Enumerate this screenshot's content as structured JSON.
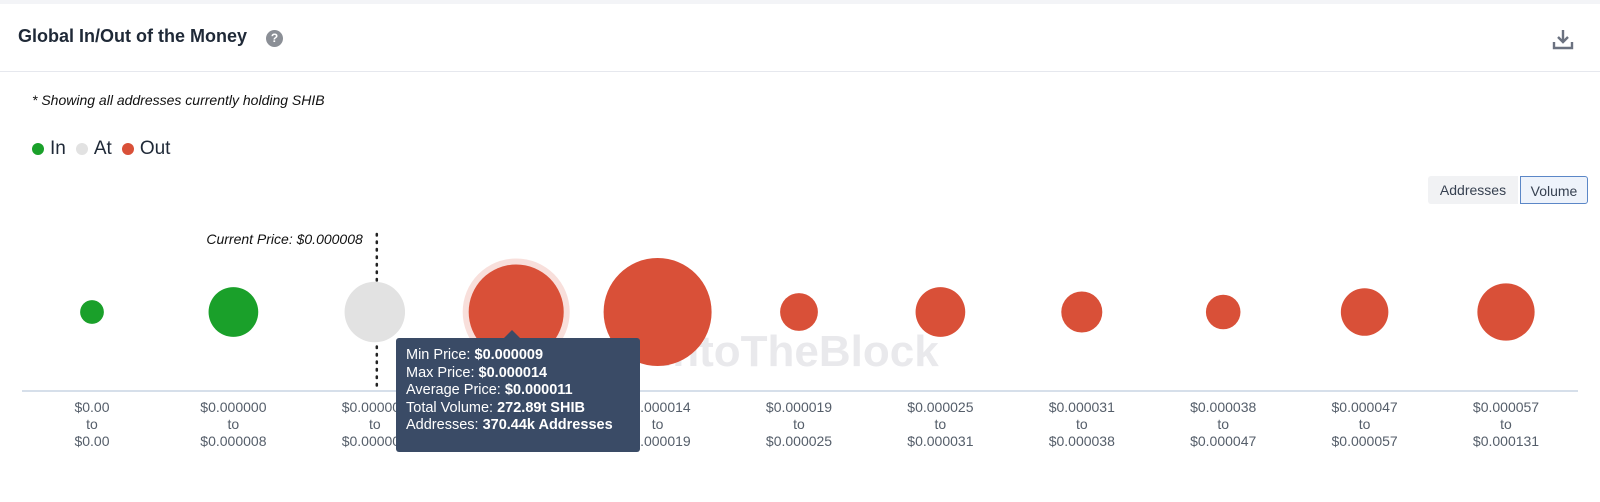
{
  "header": {
    "title": "Global In/Out of the Money",
    "help_icon": "question-icon",
    "download_icon": "download-icon"
  },
  "note": "* Showing all addresses currently holding SHIB",
  "legend": [
    {
      "label": "In",
      "color": "#1aa02a"
    },
    {
      "label": "At",
      "color": "#e2e2e2"
    },
    {
      "label": "Out",
      "color": "#d95038"
    }
  ],
  "toggles": {
    "addresses": "Addresses",
    "volume": "Volume",
    "active": "Volume"
  },
  "watermark": "IntoTheBlock",
  "chart_data": {
    "type": "scatter",
    "current_price_label": "Current Price: $0.000008",
    "current_price_position": "between bucket 3 center and bucket 3",
    "bucket_labels": [
      {
        "from": "$0.00",
        "to": "$0.00"
      },
      {
        "from": "$0.000000",
        "to": "$0.000008"
      },
      {
        "from": "$0.000008",
        "to": "$0.000009"
      },
      {
        "from": "$0.000009",
        "to": "$0.000014"
      },
      {
        "from": "$0.000014",
        "to": "$0.000019"
      },
      {
        "from": "$0.000019",
        "to": "$0.000025"
      },
      {
        "from": "$0.000025",
        "to": "$0.000031"
      },
      {
        "from": "$0.000031",
        "to": "$0.000038"
      },
      {
        "from": "$0.000038",
        "to": "$0.000047"
      },
      {
        "from": "$0.000047",
        "to": "$0.000057"
      },
      {
        "from": "$0.000057",
        "to": "$0.000131"
      }
    ],
    "bubbles": [
      {
        "status": "In",
        "relative_size": 0.22
      },
      {
        "status": "In",
        "relative_size": 0.46
      },
      {
        "status": "At",
        "relative_size": 0.56
      },
      {
        "status": "Out",
        "relative_size": 0.88,
        "highlighted": true
      },
      {
        "status": "Out",
        "relative_size": 1.0
      },
      {
        "status": "Out",
        "relative_size": 0.35
      },
      {
        "status": "Out",
        "relative_size": 0.46
      },
      {
        "status": "Out",
        "relative_size": 0.38
      },
      {
        "status": "Out",
        "relative_size": 0.32
      },
      {
        "status": "Out",
        "relative_size": 0.44
      },
      {
        "status": "Out",
        "relative_size": 0.53
      }
    ]
  },
  "tooltip": {
    "min_label": "Min Price:",
    "min_value": "$0.000009",
    "max_label": "Max Price:",
    "max_value": "$0.000014",
    "avg_label": "Average Price:",
    "avg_value": "$0.000011",
    "vol_label": "Total Volume:",
    "vol_value": "272.89t SHIB",
    "addr_label": "Addresses:",
    "addr_value": "370.44k Addresses"
  }
}
